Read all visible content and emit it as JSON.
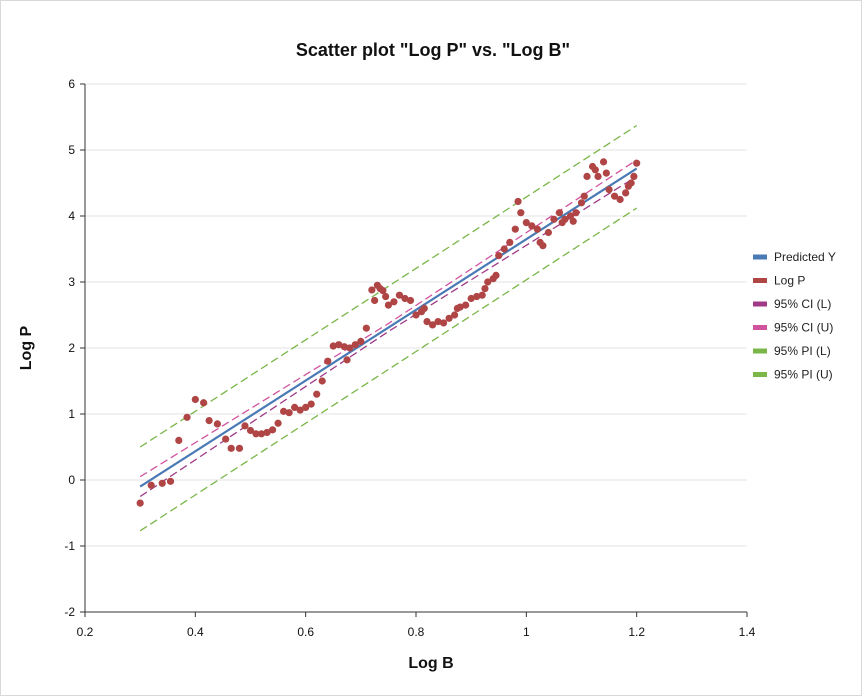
{
  "chart_data": {
    "type": "scatter",
    "title": "Scatter plot \"Log P\" vs. \"Log B\"",
    "xlabel": "Log B",
    "ylabel": "Log P",
    "xlim": [
      0.2,
      1.4
    ],
    "ylim": [
      -2,
      6
    ],
    "xticks": [
      0.2,
      0.4,
      0.6,
      0.8,
      1,
      1.2,
      1.4
    ],
    "yticks": [
      -2,
      -1,
      0,
      1,
      2,
      3,
      4,
      5,
      6
    ],
    "grid": "horizontal",
    "legend_position": "right",
    "series": [
      {
        "name": "Predicted Y",
        "kind": "line",
        "color": "#4a7ab5",
        "x": [
          0.3,
          1.2
        ],
        "y": [
          -0.1,
          4.72
        ]
      },
      {
        "name": "Log P",
        "kind": "scatter",
        "color": "#b04545",
        "x": [
          0.3,
          0.32,
          0.34,
          0.355,
          0.37,
          0.385,
          0.4,
          0.415,
          0.425,
          0.44,
          0.455,
          0.465,
          0.48,
          0.49,
          0.5,
          0.51,
          0.52,
          0.53,
          0.54,
          0.55,
          0.56,
          0.57,
          0.58,
          0.59,
          0.6,
          0.61,
          0.62,
          0.63,
          0.64,
          0.65,
          0.66,
          0.67,
          0.675,
          0.68,
          0.69,
          0.7,
          0.71,
          0.72,
          0.725,
          0.73,
          0.735,
          0.74,
          0.745,
          0.75,
          0.76,
          0.77,
          0.78,
          0.79,
          0.8,
          0.81,
          0.815,
          0.82,
          0.83,
          0.84,
          0.85,
          0.86,
          0.87,
          0.875,
          0.88,
          0.89,
          0.9,
          0.91,
          0.92,
          0.925,
          0.93,
          0.94,
          0.945,
          0.95,
          0.96,
          0.97,
          0.98,
          0.985,
          0.99,
          1,
          1.01,
          1.02,
          1.025,
          1.03,
          1.04,
          1.05,
          1.06,
          1.065,
          1.07,
          1.08,
          1.085,
          1.09,
          1.1,
          1.105,
          1.11,
          1.12,
          1.125,
          1.13,
          1.14,
          1.145,
          1.15,
          1.16,
          1.17,
          1.18,
          1.185,
          1.19,
          1.195,
          1.2
        ],
        "y": [
          -0.35,
          -0.08,
          -0.05,
          -0.02,
          0.6,
          0.95,
          1.22,
          1.17,
          0.9,
          0.85,
          0.62,
          0.48,
          0.48,
          0.82,
          0.75,
          0.7,
          0.7,
          0.72,
          0.76,
          0.86,
          1.04,
          1.02,
          1.1,
          1.06,
          1.1,
          1.15,
          1.3,
          1.5,
          1.8,
          2.03,
          2.05,
          2.02,
          1.82,
          2.0,
          2.05,
          2.1,
          2.3,
          2.88,
          2.72,
          2.95,
          2.9,
          2.87,
          2.78,
          2.65,
          2.7,
          2.8,
          2.75,
          2.72,
          2.5,
          2.55,
          2.6,
          2.4,
          2.35,
          2.4,
          2.38,
          2.45,
          2.5,
          2.6,
          2.62,
          2.65,
          2.75,
          2.78,
          2.8,
          2.9,
          3.0,
          3.05,
          3.1,
          3.4,
          3.5,
          3.6,
          3.8,
          4.22,
          4.05,
          3.9,
          3.85,
          3.8,
          3.6,
          3.55,
          3.75,
          3.95,
          4.05,
          3.9,
          3.95,
          4.0,
          3.92,
          4.05,
          4.2,
          4.3,
          4.6,
          4.75,
          4.7,
          4.6,
          4.82,
          4.65,
          4.4,
          4.3,
          4.25,
          4.35,
          4.45,
          4.5,
          4.6,
          4.8
        ]
      },
      {
        "name": "95% CI (L)",
        "kind": "dashed",
        "color": "#a03a86",
        "x": [
          0.3,
          0.75,
          1.2
        ],
        "y": [
          -0.25,
          2.25,
          4.6
        ]
      },
      {
        "name": "95% CI (U)",
        "kind": "dashed",
        "color": "#d0539e",
        "x": [
          0.3,
          0.75,
          1.2
        ],
        "y": [
          0.05,
          2.37,
          4.85
        ]
      },
      {
        "name": "95% PI (L)",
        "kind": "dashed",
        "color": "#7ab648",
        "x": [
          0.3,
          1.2
        ],
        "y": [
          -0.77,
          4.12
        ]
      },
      {
        "name": "95% PI (U)",
        "kind": "dashed",
        "color": "#7ab648",
        "x": [
          0.3,
          1.2
        ],
        "y": [
          0.5,
          5.37
        ]
      }
    ]
  }
}
